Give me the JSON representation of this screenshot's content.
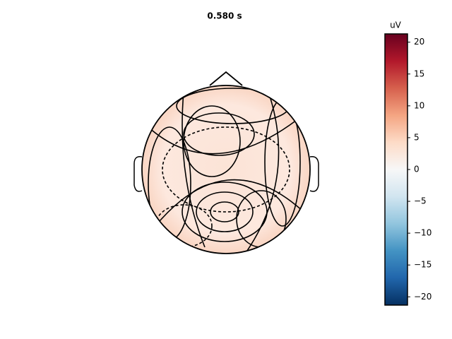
{
  "chart_data": {
    "type": "topomap",
    "title": "0.580 s",
    "colorbar_label": "uV",
    "clim": [
      -21.3,
      21.3
    ],
    "cticks": [
      {
        "value": -20,
        "label": "−20"
      },
      {
        "value": -15,
        "label": "−15"
      },
      {
        "value": -10,
        "label": "−10"
      },
      {
        "value": -5,
        "label": "−5"
      },
      0,
      5,
      10,
      15,
      20
    ]
  }
}
